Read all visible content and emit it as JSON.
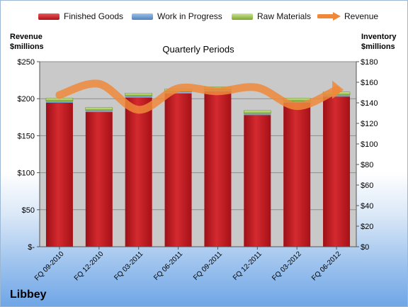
{
  "legend": {
    "finished": "Finished Goods",
    "wip": "Work in Progress",
    "raw": "Raw Materials",
    "revenue": "Revenue"
  },
  "left_axis_title": [
    "Revenue",
    "$millions"
  ],
  "right_axis_title": [
    "Inventory",
    "$millions"
  ],
  "brand": "Libbey",
  "colors": {
    "finished": "#c0171d",
    "wip": "#4f81bd",
    "raw": "#8fbc3a",
    "revenue": "#f0883a",
    "plot_bg": "#c9c9c9"
  },
  "chart_data": {
    "type": "bar",
    "title": "Quarterly Periods",
    "categories": [
      "FQ 09-2010",
      "FQ 12-2010",
      "FQ 03-2011",
      "FQ 06-2011",
      "FQ 09-2011",
      "FQ 12-2011",
      "FQ 03-2012",
      "FQ 06-2012"
    ],
    "stacked": true,
    "series": [
      {
        "name": "Finished Goods",
        "axis": "right",
        "values": [
          140,
          131,
          145,
          149,
          151,
          128,
          140,
          146
        ]
      },
      {
        "name": "Work in Progress",
        "axis": "right",
        "values": [
          1.5,
          1.5,
          1.5,
          1.5,
          1.5,
          1.5,
          1.5,
          1.5
        ]
      },
      {
        "name": "Raw Materials",
        "axis": "right",
        "values": [
          3,
          3,
          3,
          3,
          3,
          3,
          3,
          3
        ]
      },
      {
        "name": "Revenue",
        "type": "line",
        "axis": "left",
        "values": [
          205,
          220,
          185,
          214,
          210,
          215,
          190,
          212
        ]
      }
    ],
    "left_axis": {
      "label": "Revenue $millions",
      "ylim": [
        0,
        250
      ],
      "ticks": [
        "$-",
        "$50",
        "$100",
        "$150",
        "$200",
        "$250"
      ]
    },
    "right_axis": {
      "label": "Inventory $millions",
      "ylim": [
        0,
        180
      ],
      "ticks": [
        "$0",
        "$20",
        "$40",
        "$60",
        "$80",
        "$100",
        "$120",
        "$140",
        "$160",
        "$180"
      ]
    },
    "grid": true,
    "legend_position": "top"
  }
}
